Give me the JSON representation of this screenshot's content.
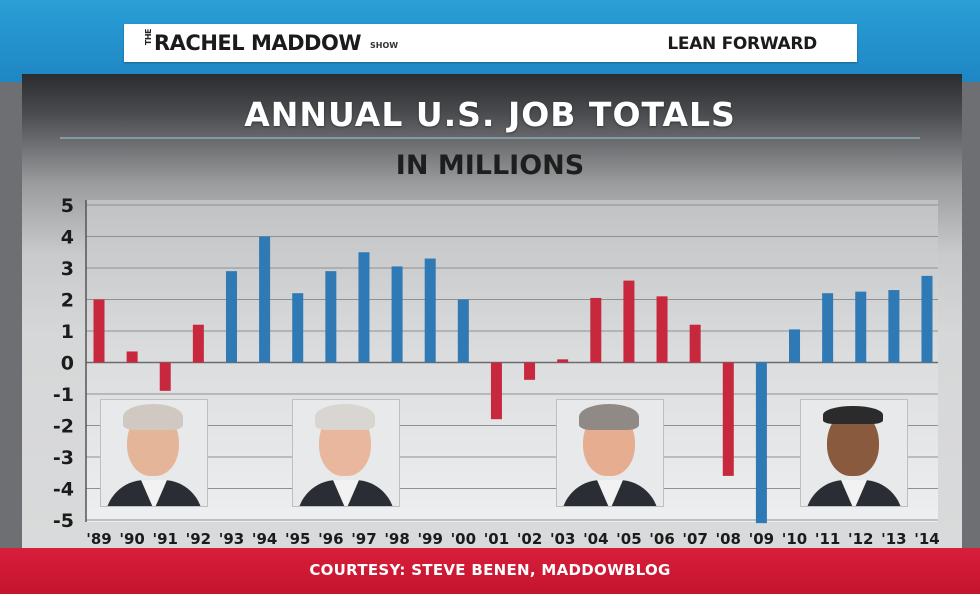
{
  "header": {
    "show_the": "THE",
    "show_name": "RACHEL MADDOW",
    "show_suffix": "SHOW",
    "tagline": "LEAN FORWARD"
  },
  "footer": {
    "courtesy": "COURTESY: STEVE BENEN, MADDOWBLOG"
  },
  "photos": [
    {
      "label": "president-photo-bush-sr"
    },
    {
      "label": "president-photo-clinton"
    },
    {
      "label": "president-photo-bush-jr"
    },
    {
      "label": "president-photo-obama"
    }
  ],
  "colors": {
    "republican": "#c8283d",
    "democrat": "#2f79b5",
    "band_blue": "#2a9fd6",
    "band_red": "#d81e3b"
  },
  "chart_data": {
    "type": "bar",
    "title": "ANNUAL U.S. JOB TOTALS",
    "subtitle": "IN MILLIONS",
    "xlabel": "",
    "ylabel": "",
    "ylim": [
      -5,
      5
    ],
    "yticks": [
      "5",
      "4",
      "3",
      "2",
      "1",
      "0",
      "-1",
      "-2",
      "-3",
      "-4",
      "-5"
    ],
    "categories": [
      "'89",
      "'90",
      "'91",
      "'92",
      "'93",
      "'94",
      "'95",
      "'96",
      "'97",
      "'98",
      "'99",
      "'00",
      "'01",
      "'02",
      "'03",
      "'04",
      "'05",
      "'06",
      "'07",
      "'08",
      "'09",
      "'10",
      "'11",
      "'12",
      "'13",
      "'14"
    ],
    "values": [
      2.0,
      0.35,
      -0.9,
      1.2,
      2.9,
      4.0,
      2.2,
      2.9,
      3.5,
      3.05,
      3.3,
      2.0,
      -1.8,
      -0.55,
      0.1,
      2.05,
      2.6,
      2.1,
      1.2,
      -3.6,
      -5.1,
      1.05,
      2.2,
      2.25,
      2.3,
      2.75
    ],
    "party": [
      "R",
      "R",
      "R",
      "R",
      "D",
      "D",
      "D",
      "D",
      "D",
      "D",
      "D",
      "D",
      "R",
      "R",
      "R",
      "R",
      "R",
      "R",
      "R",
      "R",
      "D",
      "D",
      "D",
      "D",
      "D",
      "D"
    ]
  }
}
